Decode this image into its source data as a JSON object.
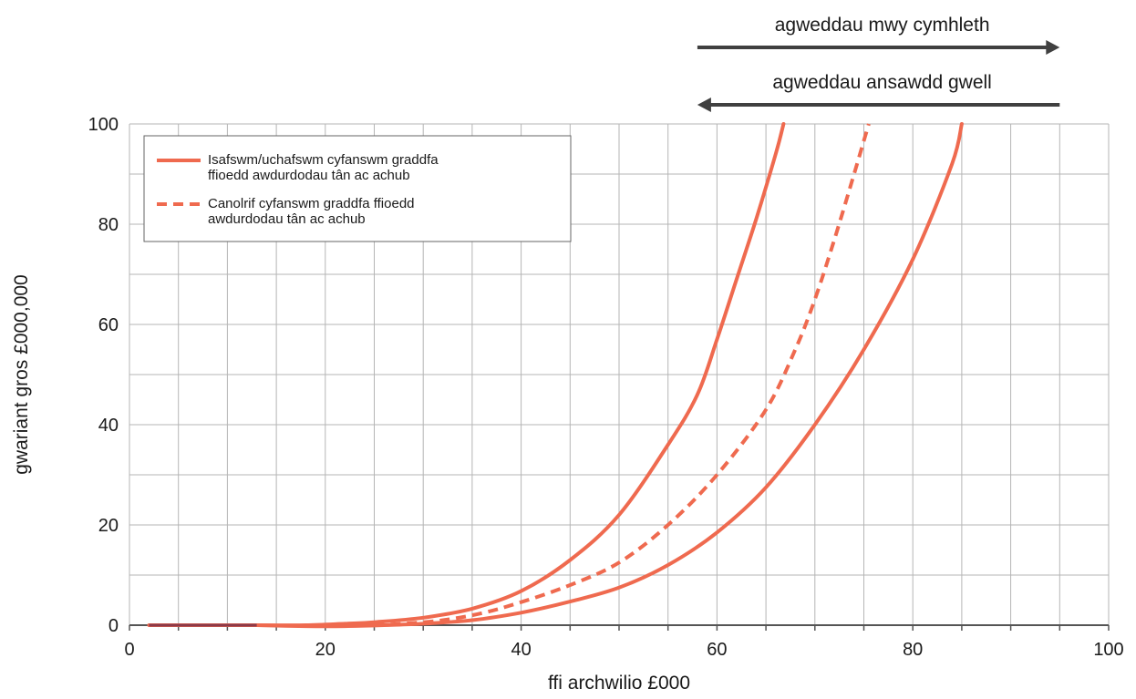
{
  "chart_data": {
    "type": "line",
    "xlabel": "ffi archwilio £000",
    "ylabel": "gwariant gros £000,000",
    "xlim": [
      0,
      100
    ],
    "ylim": [
      0,
      100
    ],
    "x_ticks": [
      "0",
      "20",
      "40",
      "60",
      "80",
      "100"
    ],
    "y_ticks": [
      "0",
      "20",
      "40",
      "60",
      "80",
      "100"
    ],
    "grid": true,
    "legend_position": "top-left",
    "colors": {
      "series": "#ef6a4f",
      "grid": "#b5b5b5",
      "axis": "#555555",
      "arrow": "#404040",
      "baseline_stub": "#8b3a4a"
    },
    "annotations": [
      {
        "text": "agweddau mwy cymhleth",
        "direction": "right",
        "x_from": 58,
        "x_to": 95
      },
      {
        "text": "agweddau ansawdd gwell",
        "direction": "left",
        "x_from": 95,
        "x_to": 58
      }
    ],
    "legend": [
      {
        "line1": "Isafswm/uchafswm cyfanswm graddfa",
        "line2": "ffioedd awdurdodau tân ac achub",
        "style": "solid"
      },
      {
        "line1": "Canolrif cyfanswm graddfa ffioedd",
        "line2": "awdurdodau tân ac achub",
        "style": "dashed"
      }
    ],
    "series": [
      {
        "style": "solid",
        "points": [
          [
            2,
            0
          ],
          [
            13,
            0
          ],
          [
            18,
            0
          ],
          [
            22,
            0.3
          ],
          [
            25,
            0.6
          ],
          [
            30,
            1.5
          ],
          [
            35,
            3.3
          ],
          [
            40,
            6.8
          ],
          [
            45,
            13
          ],
          [
            50,
            22
          ],
          [
            55,
            36
          ],
          [
            58,
            46
          ],
          [
            60,
            57
          ],
          [
            62,
            69
          ],
          [
            64,
            81
          ],
          [
            66,
            94
          ],
          [
            66.8,
            100
          ]
        ]
      },
      {
        "style": "solid",
        "points": [
          [
            13,
            0
          ],
          [
            18,
            -0.2
          ],
          [
            22,
            -0.2
          ],
          [
            26,
            0
          ],
          [
            30,
            0.3
          ],
          [
            35,
            1
          ],
          [
            40,
            2.5
          ],
          [
            45,
            4.7
          ],
          [
            50,
            7.5
          ],
          [
            55,
            12
          ],
          [
            60,
            18.5
          ],
          [
            65,
            27.5
          ],
          [
            70,
            40
          ],
          [
            75,
            55
          ],
          [
            80,
            73
          ],
          [
            84,
            92
          ],
          [
            85,
            100
          ]
        ]
      },
      {
        "style": "dashed",
        "points": [
          [
            25,
            0
          ],
          [
            28,
            0.3
          ],
          [
            32,
            1
          ],
          [
            36,
            2.4
          ],
          [
            40,
            4.6
          ],
          [
            45,
            8
          ],
          [
            50,
            12.5
          ],
          [
            55,
            20
          ],
          [
            60,
            30
          ],
          [
            65,
            43
          ],
          [
            68,
            55
          ],
          [
            70,
            65
          ],
          [
            72,
            77
          ],
          [
            74,
            90
          ],
          [
            75.5,
            100
          ]
        ]
      }
    ]
  }
}
